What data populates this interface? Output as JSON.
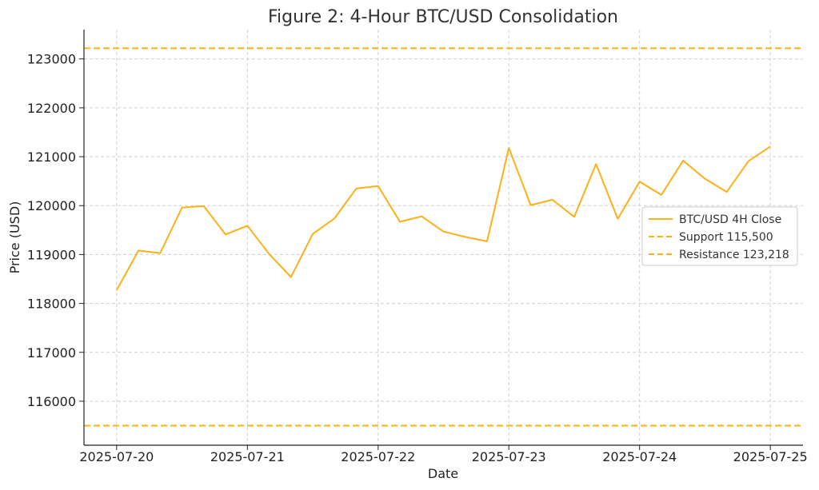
{
  "chart_data": {
    "type": "line",
    "title": "Figure 2: 4-Hour BTC/USD Consolidation",
    "xlabel": "Date",
    "ylabel": "Price (USD)",
    "x_tick_labels": [
      "2025-07-20",
      "2025-07-21",
      "2025-07-22",
      "2025-07-23",
      "2025-07-24",
      "2025-07-25"
    ],
    "y_ticks": [
      116000,
      117000,
      118000,
      119000,
      120000,
      121000,
      122000,
      123000
    ],
    "xlim": [
      "2025-07-19 18:00",
      "2025-07-25 06:00"
    ],
    "ylim": [
      115100,
      123600
    ],
    "grid": true,
    "legend_position": "center-right",
    "series": [
      {
        "name": "BTC/USD 4H Close",
        "color": "#FBB117",
        "style": "solid",
        "x": [
          "2025-07-20 00:00",
          "2025-07-20 04:00",
          "2025-07-20 08:00",
          "2025-07-20 12:00",
          "2025-07-20 16:00",
          "2025-07-20 20:00",
          "2025-07-21 00:00",
          "2025-07-21 04:00",
          "2025-07-21 08:00",
          "2025-07-21 12:00",
          "2025-07-21 16:00",
          "2025-07-21 20:00",
          "2025-07-22 00:00",
          "2025-07-22 04:00",
          "2025-07-22 08:00",
          "2025-07-22 12:00",
          "2025-07-22 16:00",
          "2025-07-22 20:00",
          "2025-07-23 00:00",
          "2025-07-23 04:00",
          "2025-07-23 08:00",
          "2025-07-23 12:00",
          "2025-07-23 16:00",
          "2025-07-23 20:00",
          "2025-07-24 00:00",
          "2025-07-24 04:00",
          "2025-07-24 08:00",
          "2025-07-24 12:00",
          "2025-07-24 16:00",
          "2025-07-24 20:00",
          "2025-07-25 00:00"
        ],
        "values": [
          118270,
          119080,
          119030,
          119960,
          119990,
          119410,
          119590,
          119010,
          118540,
          119420,
          119740,
          120350,
          120400,
          119670,
          119780,
          119470,
          119360,
          119270,
          121180,
          120010,
          120120,
          119770,
          120850,
          119730,
          120490,
          120220,
          120920,
          120550,
          120280,
          120910,
          121210
        ]
      },
      {
        "name": "Support 115,500",
        "color": "#FBB117",
        "style": "dashed",
        "y": 115500
      },
      {
        "name": "Resistance 123,218",
        "color": "#FBB117",
        "style": "dashed",
        "y": 123218
      }
    ]
  }
}
